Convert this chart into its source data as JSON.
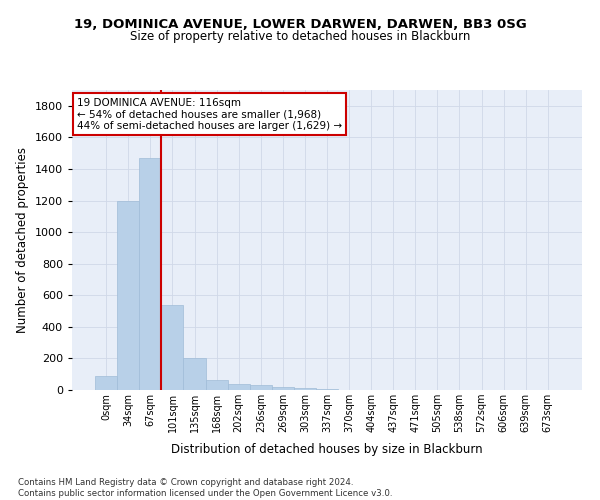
{
  "title1": "19, DOMINICA AVENUE, LOWER DARWEN, DARWEN, BB3 0SG",
  "title2": "Size of property relative to detached houses in Blackburn",
  "xlabel": "Distribution of detached houses by size in Blackburn",
  "ylabel": "Number of detached properties",
  "bar_values": [
    90,
    1200,
    1470,
    540,
    205,
    65,
    40,
    30,
    20,
    10,
    5,
    0,
    0,
    0,
    0,
    0,
    0,
    0,
    0,
    0,
    0
  ],
  "bar_color": "#b8d0e8",
  "bar_edge_color": "#a0bcd8",
  "x_labels": [
    "0sqm",
    "34sqm",
    "67sqm",
    "101sqm",
    "135sqm",
    "168sqm",
    "202sqm",
    "236sqm",
    "269sqm",
    "303sqm",
    "337sqm",
    "370sqm",
    "404sqm",
    "437sqm",
    "471sqm",
    "505sqm",
    "538sqm",
    "572sqm",
    "606sqm",
    "639sqm",
    "673sqm"
  ],
  "grid_color": "#d0d8e8",
  "background_color": "#ffffff",
  "plot_bg_color": "#e8eef8",
  "vline_color": "#cc0000",
  "annotation_text": "19 DOMINICA AVENUE: 116sqm\n← 54% of detached houses are smaller (1,968)\n44% of semi-detached houses are larger (1,629) →",
  "annotation_box_color": "#ffffff",
  "annotation_box_edge": "#cc0000",
  "footnote": "Contains HM Land Registry data © Crown copyright and database right 2024.\nContains public sector information licensed under the Open Government Licence v3.0.",
  "ylim": [
    0,
    1900
  ],
  "yticks": [
    0,
    200,
    400,
    600,
    800,
    1000,
    1200,
    1400,
    1600,
    1800
  ]
}
